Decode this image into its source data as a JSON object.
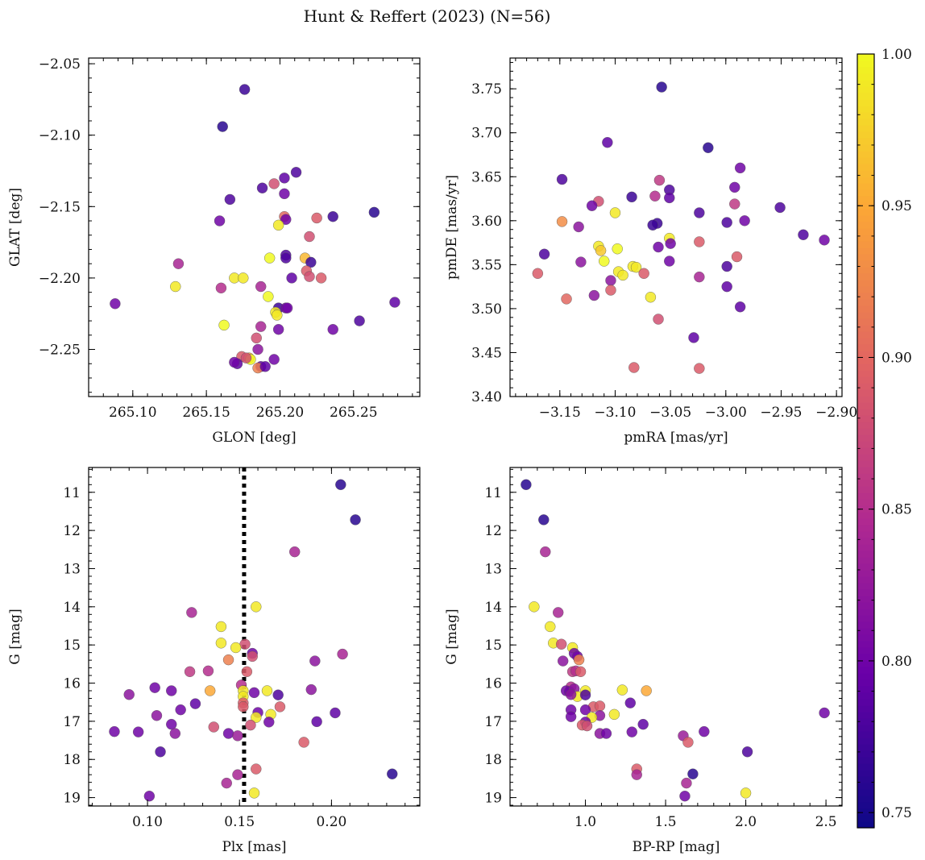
{
  "figure": {
    "title": "Hunt & Reffert (2023) (N=56)"
  },
  "colorbar": {
    "min": 0.745,
    "max": 1.0,
    "tick_values": [
      0.75,
      0.8,
      0.85,
      0.9,
      0.95,
      1.0
    ],
    "tick_labels": [
      "0.75",
      "0.80",
      "0.85",
      "0.90",
      "0.95",
      "1.00"
    ],
    "colormap": [
      "#0d0887",
      "#6a00a8",
      "#b12a90",
      "#e16462",
      "#fca636",
      "#f0f921"
    ]
  },
  "chart_data": [
    {
      "type": "scatter",
      "name": "glon-glat",
      "xlabel": "GLON [deg]",
      "ylabel": "GLAT [deg]",
      "xlim": [
        265.07,
        265.295
      ],
      "ylim": [
        -2.283,
        -2.046
      ],
      "xticks": [
        265.1,
        265.15,
        265.2,
        265.25
      ],
      "xtick_labels": [
        "265.10",
        "265.15",
        "265.20",
        "265.25"
      ],
      "yticks": [
        -2.25,
        -2.2,
        -2.15,
        -2.1,
        -2.05
      ],
      "ytick_labels": [
        "−2.25",
        "−2.20",
        "−2.15",
        "−2.10",
        "−2.05"
      ],
      "y_inverted": false,
      "points": [
        [
          265.176,
          -2.068,
          0.77
        ],
        [
          265.161,
          -2.094,
          0.76
        ],
        [
          265.211,
          -2.126,
          0.78
        ],
        [
          265.203,
          -2.13,
          0.79
        ],
        [
          265.188,
          -2.137,
          0.78
        ],
        [
          265.196,
          -2.134,
          0.88
        ],
        [
          265.203,
          -2.141,
          0.8
        ],
        [
          265.166,
          -2.145,
          0.78
        ],
        [
          265.159,
          -2.16,
          0.8
        ],
        [
          265.236,
          -2.157,
          0.77
        ],
        [
          265.264,
          -2.154,
          0.76
        ],
        [
          265.203,
          -2.157,
          0.9
        ],
        [
          265.204,
          -2.159,
          0.8
        ],
        [
          265.225,
          -2.158,
          0.89
        ],
        [
          265.199,
          -2.163,
          0.99
        ],
        [
          265.22,
          -2.171,
          0.88
        ],
        [
          265.193,
          -2.186,
          1.0
        ],
        [
          265.217,
          -2.186,
          0.96
        ],
        [
          265.204,
          -2.184,
          0.78
        ],
        [
          265.204,
          -2.186,
          0.78
        ],
        [
          265.221,
          -2.189,
          0.77
        ],
        [
          265.131,
          -2.19,
          0.84
        ],
        [
          265.218,
          -2.195,
          0.89
        ],
        [
          265.22,
          -2.199,
          0.88
        ],
        [
          265.228,
          -2.2,
          0.89
        ],
        [
          265.208,
          -2.2,
          0.79
        ],
        [
          265.169,
          -2.2,
          0.99
        ],
        [
          265.175,
          -2.2,
          0.99
        ],
        [
          265.129,
          -2.206,
          0.99
        ],
        [
          265.16,
          -2.207,
          0.85
        ],
        [
          265.187,
          -2.206,
          0.84
        ],
        [
          265.192,
          -2.213,
          1.0
        ],
        [
          265.088,
          -2.218,
          0.8
        ],
        [
          265.278,
          -2.217,
          0.79
        ],
        [
          265.199,
          -2.221,
          0.77
        ],
        [
          265.204,
          -2.221,
          0.8
        ],
        [
          265.197,
          -2.224,
          0.99
        ],
        [
          265.198,
          -2.226,
          0.99
        ],
        [
          265.254,
          -2.23,
          0.78
        ],
        [
          265.199,
          -2.236,
          0.8
        ],
        [
          265.236,
          -2.236,
          0.8
        ],
        [
          265.187,
          -2.234,
          0.84
        ],
        [
          265.162,
          -2.233,
          1.0
        ],
        [
          265.184,
          -2.242,
          0.88
        ],
        [
          265.185,
          -2.25,
          0.82
        ],
        [
          265.174,
          -2.255,
          0.89
        ],
        [
          265.179,
          -2.256,
          0.95
        ],
        [
          265.18,
          -2.257,
          1.0
        ],
        [
          265.196,
          -2.257,
          0.8
        ],
        [
          265.171,
          -2.26,
          0.79
        ],
        [
          265.187,
          -2.262,
          0.79
        ],
        [
          265.185,
          -2.263,
          0.92
        ],
        [
          265.19,
          -2.262,
          0.79
        ],
        [
          265.177,
          -2.256,
          0.88
        ],
        [
          265.169,
          -2.259,
          0.8
        ],
        [
          265.205,
          -2.221,
          0.8
        ]
      ]
    },
    {
      "type": "scatter",
      "name": "pmra-pmde",
      "xlabel": "pmRA [mas/yr]",
      "ylabel": "pmDE [mas/yr]",
      "xlim": [
        -3.195,
        -2.895
      ],
      "ylim": [
        3.4,
        3.785
      ],
      "xticks": [
        -3.15,
        -3.1,
        -3.05,
        -3.0,
        -2.95,
        -2.9
      ],
      "xtick_labels": [
        "−3.15",
        "−3.10",
        "−3.05",
        "−3.00",
        "−2.95",
        "−2.90"
      ],
      "yticks": [
        3.4,
        3.45,
        3.5,
        3.55,
        3.6,
        3.65,
        3.7,
        3.75
      ],
      "ytick_labels": [
        "3.40",
        "3.45",
        "3.50",
        "3.55",
        "3.60",
        "3.65",
        "3.70",
        "3.75"
      ],
      "y_inverted": false,
      "points": [
        [
          -3.058,
          3.752,
          0.76
        ],
        [
          -3.107,
          3.689,
          0.79
        ],
        [
          -3.016,
          3.683,
          0.76
        ],
        [
          -2.987,
          3.66,
          0.8
        ],
        [
          -3.148,
          3.647,
          0.78
        ],
        [
          -3.06,
          3.646,
          0.86
        ],
        [
          -3.051,
          3.635,
          0.78
        ],
        [
          -3.085,
          3.627,
          0.77
        ],
        [
          -3.064,
          3.628,
          0.85
        ],
        [
          -3.051,
          3.626,
          0.79
        ],
        [
          -2.992,
          3.638,
          0.8
        ],
        [
          -3.115,
          3.622,
          0.88
        ],
        [
          -2.992,
          3.619,
          0.86
        ],
        [
          -3.121,
          3.617,
          0.8
        ],
        [
          -2.951,
          3.615,
          0.78
        ],
        [
          -3.024,
          3.609,
          0.78
        ],
        [
          -3.1,
          3.609,
          0.99
        ],
        [
          -3.148,
          3.599,
          0.93
        ],
        [
          -2.999,
          3.598,
          0.78
        ],
        [
          -2.983,
          3.6,
          0.8
        ],
        [
          -3.062,
          3.597,
          0.77
        ],
        [
          -3.066,
          3.595,
          0.77
        ],
        [
          -3.133,
          3.593,
          0.82
        ],
        [
          -2.93,
          3.584,
          0.78
        ],
        [
          -2.911,
          3.578,
          0.8
        ],
        [
          -3.051,
          3.58,
          0.99
        ],
        [
          -3.024,
          3.576,
          0.89
        ],
        [
          -3.05,
          3.574,
          0.8
        ],
        [
          -3.115,
          3.571,
          0.99
        ],
        [
          -3.098,
          3.568,
          1.0
        ],
        [
          -3.113,
          3.566,
          0.97
        ],
        [
          -3.061,
          3.57,
          0.8
        ],
        [
          -3.164,
          3.562,
          0.78
        ],
        [
          -2.99,
          3.559,
          0.89
        ],
        [
          -3.051,
          3.554,
          0.8
        ],
        [
          -3.11,
          3.554,
          1.0
        ],
        [
          -3.131,
          3.553,
          0.82
        ],
        [
          -3.084,
          3.548,
          0.99
        ],
        [
          -3.081,
          3.547,
          0.99
        ],
        [
          -2.999,
          3.548,
          0.78
        ],
        [
          -3.097,
          3.542,
          0.99
        ],
        [
          -3.093,
          3.538,
          0.99
        ],
        [
          -3.17,
          3.54,
          0.89
        ],
        [
          -3.074,
          3.54,
          0.89
        ],
        [
          -3.024,
          3.536,
          0.84
        ],
        [
          -3.104,
          3.532,
          0.82
        ],
        [
          -2.999,
          3.525,
          0.79
        ],
        [
          -3.104,
          3.521,
          0.89
        ],
        [
          -3.119,
          3.515,
          0.82
        ],
        [
          -3.068,
          3.513,
          0.99
        ],
        [
          -3.144,
          3.511,
          0.9
        ],
        [
          -2.987,
          3.502,
          0.79
        ],
        [
          -3.061,
          3.488,
          0.88
        ],
        [
          -3.029,
          3.467,
          0.79
        ],
        [
          -3.083,
          3.433,
          0.89
        ],
        [
          -3.024,
          3.432,
          0.89
        ]
      ]
    },
    {
      "type": "scatter",
      "name": "plx-g",
      "xlabel": "Plx [mas]",
      "ylabel": "G [mag]",
      "xlim": [
        0.068,
        0.248
      ],
      "ylim": [
        10.35,
        19.22
      ],
      "xticks": [
        0.1,
        0.15,
        0.2
      ],
      "xtick_labels": [
        "0.10",
        "0.15",
        "0.20"
      ],
      "yticks": [
        11,
        12,
        13,
        14,
        15,
        16,
        17,
        18,
        19
      ],
      "ytick_labels": [
        "11",
        "12",
        "13",
        "14",
        "15",
        "16",
        "17",
        "18",
        "19"
      ],
      "y_inverted": true,
      "vline": 0.1525,
      "points": [
        [
          0.205,
          10.8,
          0.76
        ],
        [
          0.213,
          11.72,
          0.76
        ],
        [
          0.18,
          12.56,
          0.84
        ],
        [
          0.159,
          14.0,
          0.99
        ],
        [
          0.124,
          14.15,
          0.84
        ],
        [
          0.14,
          14.52,
          0.99
        ],
        [
          0.14,
          14.95,
          0.99
        ],
        [
          0.153,
          14.98,
          0.88
        ],
        [
          0.148,
          15.07,
          0.99
        ],
        [
          0.157,
          15.22,
          0.8
        ],
        [
          0.206,
          15.24,
          0.84
        ],
        [
          0.157,
          15.3,
          0.88
        ],
        [
          0.144,
          15.39,
          0.92
        ],
        [
          0.191,
          15.42,
          0.82
        ],
        [
          0.123,
          15.7,
          0.86
        ],
        [
          0.133,
          15.68,
          0.85
        ],
        [
          0.154,
          15.7,
          0.89
        ],
        [
          0.151,
          16.05,
          0.85
        ],
        [
          0.104,
          16.12,
          0.8
        ],
        [
          0.189,
          16.17,
          0.82
        ],
        [
          0.113,
          16.2,
          0.8
        ],
        [
          0.158,
          16.25,
          0.8
        ],
        [
          0.134,
          16.2,
          0.95
        ],
        [
          0.152,
          16.2,
          0.99
        ],
        [
          0.152,
          16.35,
          0.99
        ],
        [
          0.165,
          16.2,
          0.99
        ],
        [
          0.171,
          16.31,
          0.78
        ],
        [
          0.09,
          16.3,
          0.82
        ],
        [
          0.152,
          16.52,
          0.89
        ],
        [
          0.126,
          16.54,
          0.79
        ],
        [
          0.152,
          16.62,
          0.89
        ],
        [
          0.172,
          16.62,
          0.89
        ],
        [
          0.118,
          16.7,
          0.8
        ],
        [
          0.202,
          16.78,
          0.79
        ],
        [
          0.16,
          16.77,
          0.8
        ],
        [
          0.167,
          16.82,
          0.99
        ],
        [
          0.105,
          16.85,
          0.82
        ],
        [
          0.159,
          16.9,
          0.99
        ],
        [
          0.166,
          17.02,
          0.8
        ],
        [
          0.192,
          17.01,
          0.79
        ],
        [
          0.113,
          17.08,
          0.8
        ],
        [
          0.156,
          17.1,
          0.88
        ],
        [
          0.136,
          17.15,
          0.88
        ],
        [
          0.082,
          17.27,
          0.8
        ],
        [
          0.095,
          17.28,
          0.8
        ],
        [
          0.115,
          17.32,
          0.82
        ],
        [
          0.144,
          17.32,
          0.8
        ],
        [
          0.149,
          17.38,
          0.83
        ],
        [
          0.185,
          17.55,
          0.89
        ],
        [
          0.107,
          17.8,
          0.78
        ],
        [
          0.159,
          18.25,
          0.89
        ],
        [
          0.233,
          18.38,
          0.76
        ],
        [
          0.149,
          18.4,
          0.84
        ],
        [
          0.143,
          18.62,
          0.84
        ],
        [
          0.158,
          18.88,
          0.99
        ],
        [
          0.101,
          18.96,
          0.8
        ]
      ]
    },
    {
      "type": "scatter",
      "name": "bprp-g",
      "xlabel": "BP-RP [mag]",
      "ylabel": "G [mag]",
      "xlim": [
        0.53,
        2.6
      ],
      "ylim": [
        10.35,
        19.22
      ],
      "xticks": [
        1.0,
        1.5,
        2.0,
        2.5
      ],
      "xtick_labels": [
        "1.0",
        "1.5",
        "2.0",
        "2.5"
      ],
      "yticks": [
        11,
        12,
        13,
        14,
        15,
        16,
        17,
        18,
        19
      ],
      "ytick_labels": [
        "11",
        "12",
        "13",
        "14",
        "15",
        "16",
        "17",
        "18",
        "19"
      ],
      "y_inverted": true,
      "points": [
        [
          0.63,
          10.8,
          0.76
        ],
        [
          0.74,
          11.72,
          0.76
        ],
        [
          0.75,
          12.56,
          0.84
        ],
        [
          0.68,
          14.0,
          0.99
        ],
        [
          0.83,
          14.15,
          0.84
        ],
        [
          0.78,
          14.52,
          0.99
        ],
        [
          0.8,
          14.95,
          0.99
        ],
        [
          0.85,
          14.98,
          0.88
        ],
        [
          0.92,
          15.07,
          0.99
        ],
        [
          0.93,
          15.22,
          0.8
        ],
        [
          0.95,
          15.3,
          0.8
        ],
        [
          0.96,
          15.39,
          0.92
        ],
        [
          0.86,
          15.42,
          0.82
        ],
        [
          0.92,
          15.7,
          0.86
        ],
        [
          0.94,
          15.68,
          0.85
        ],
        [
          0.97,
          15.7,
          0.89
        ],
        [
          0.91,
          16.1,
          0.85
        ],
        [
          0.88,
          16.2,
          0.8
        ],
        [
          0.9,
          16.22,
          0.8
        ],
        [
          0.93,
          16.15,
          0.82
        ],
        [
          1.0,
          16.2,
          0.99
        ],
        [
          1.23,
          16.18,
          0.99
        ],
        [
          1.38,
          16.2,
          0.95
        ],
        [
          0.95,
          16.35,
          0.99
        ],
        [
          1.0,
          16.31,
          0.78
        ],
        [
          0.91,
          16.3,
          0.82
        ],
        [
          1.28,
          16.52,
          0.79
        ],
        [
          1.05,
          16.62,
          0.89
        ],
        [
          1.09,
          16.6,
          0.89
        ],
        [
          1.0,
          16.7,
          0.8
        ],
        [
          0.91,
          16.7,
          0.8
        ],
        [
          1.18,
          16.82,
          0.99
        ],
        [
          1.09,
          16.85,
          0.82
        ],
        [
          0.91,
          16.88,
          0.8
        ],
        [
          2.49,
          16.78,
          0.8
        ],
        [
          1.04,
          16.9,
          0.99
        ],
        [
          1.0,
          17.02,
          0.8
        ],
        [
          0.98,
          17.1,
          0.89
        ],
        [
          1.01,
          17.12,
          0.88
        ],
        [
          1.36,
          17.08,
          0.79
        ],
        [
          1.29,
          17.28,
          0.8
        ],
        [
          1.74,
          17.27,
          0.8
        ],
        [
          1.09,
          17.32,
          0.82
        ],
        [
          1.13,
          17.32,
          0.8
        ],
        [
          1.61,
          17.38,
          0.83
        ],
        [
          1.64,
          17.55,
          0.89
        ],
        [
          2.01,
          17.8,
          0.78
        ],
        [
          1.32,
          18.25,
          0.89
        ],
        [
          1.67,
          18.38,
          0.76
        ],
        [
          1.32,
          18.4,
          0.84
        ],
        [
          1.63,
          18.62,
          0.84
        ],
        [
          2.0,
          18.88,
          0.99
        ],
        [
          1.62,
          18.96,
          0.8
        ]
      ]
    }
  ]
}
